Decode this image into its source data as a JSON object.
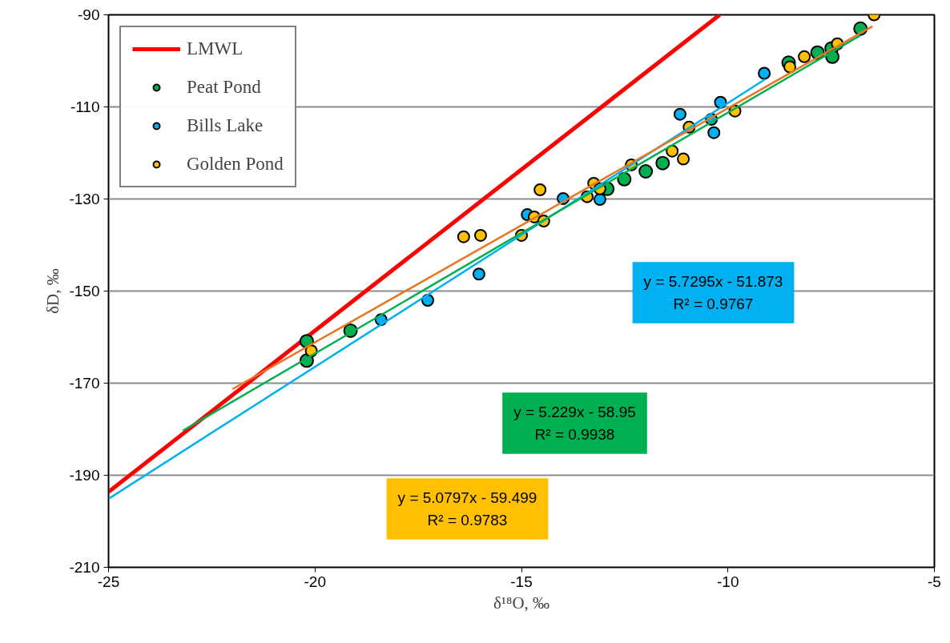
{
  "chart_data": {
    "type": "scatter",
    "xlabel": "δ¹⁸O, ‰",
    "ylabel": "δD, ‰",
    "xlim": [
      -25,
      -5
    ],
    "ylim": [
      -210,
      -90
    ],
    "xticks": [
      -25,
      -20,
      -15,
      -10,
      -5
    ],
    "yticks": [
      -210,
      -190,
      -170,
      -150,
      -130,
      -110,
      -90
    ],
    "grid": "y",
    "legend": "top left",
    "series": [
      {
        "name": "LMWL",
        "type": "line",
        "color": "#ff0000",
        "x": [
          -25,
          -10.2
        ],
        "values": [
          -193.6,
          -90
        ]
      },
      {
        "name": "Peat Pond",
        "marker": "circle",
        "color": "#00b050",
        "x": [
          -20.2,
          -20.2,
          -19.14,
          -12.92,
          -12.51,
          -11.99,
          -11.58,
          -8.53,
          -7.83,
          -7.49,
          -7.47,
          -6.79
        ],
        "values": [
          -160.9,
          -165.1,
          -158.6,
          -127.8,
          -125.7,
          -124.0,
          -122.2,
          -100.4,
          -98.2,
          -97.3,
          -99.1,
          -93.0
        ]
      },
      {
        "name": "Bills Lake",
        "marker": "circle",
        "color": "#00b0f0",
        "x": [
          -18.4,
          -17.27,
          -16.03,
          -14.86,
          -13.99,
          -13.1,
          -11.16,
          -10.4,
          -10.34,
          -10.18,
          -9.12
        ],
        "values": [
          -156.2,
          -152.0,
          -146.3,
          -133.4,
          -129.9,
          -130.1,
          -111.6,
          -112.7,
          -115.6,
          -109.0,
          -102.7
        ]
      },
      {
        "name": "Golden Pond",
        "marker": "circle",
        "color": "#ffc000",
        "x": [
          -20.09,
          -16.4,
          -15.99,
          -15.0,
          -14.55,
          -14.69,
          -14.46,
          -13.41,
          -13.25,
          -13.1,
          -12.34,
          -11.35,
          -11.08,
          -10.94,
          -9.83,
          -8.5,
          -8.15,
          -7.35,
          -6.46
        ],
        "values": [
          -163.0,
          -138.2,
          -137.9,
          -137.9,
          -128.0,
          -133.9,
          -134.8,
          -129.5,
          -126.6,
          -127.8,
          -122.6,
          -119.6,
          -121.3,
          -114.4,
          -110.9,
          -101.3,
          -99.1,
          -96.3,
          -90.0
        ]
      },
      {
        "type": "line",
        "color": "#00b0f0",
        "x": [
          -25,
          -9.1
        ],
        "values": [
          -195.1,
          -104.0
        ]
      },
      {
        "type": "line",
        "color": "#00b050",
        "x": [
          -23.2,
          -6.8
        ],
        "values": [
          -180.3,
          -94.5
        ]
      },
      {
        "type": "line",
        "color": "#e87722",
        "x": [
          -22,
          -6.5
        ],
        "values": [
          -171.3,
          -92.5
        ]
      }
    ],
    "annotations": [
      "y = 5.7295x - 51.873\nR² = 0.9767",
      "y = 5.229x - 58.95\nR² = 0.9938",
      "y = 5.0797x - 59.499\nR² = 0.9783"
    ]
  }
}
